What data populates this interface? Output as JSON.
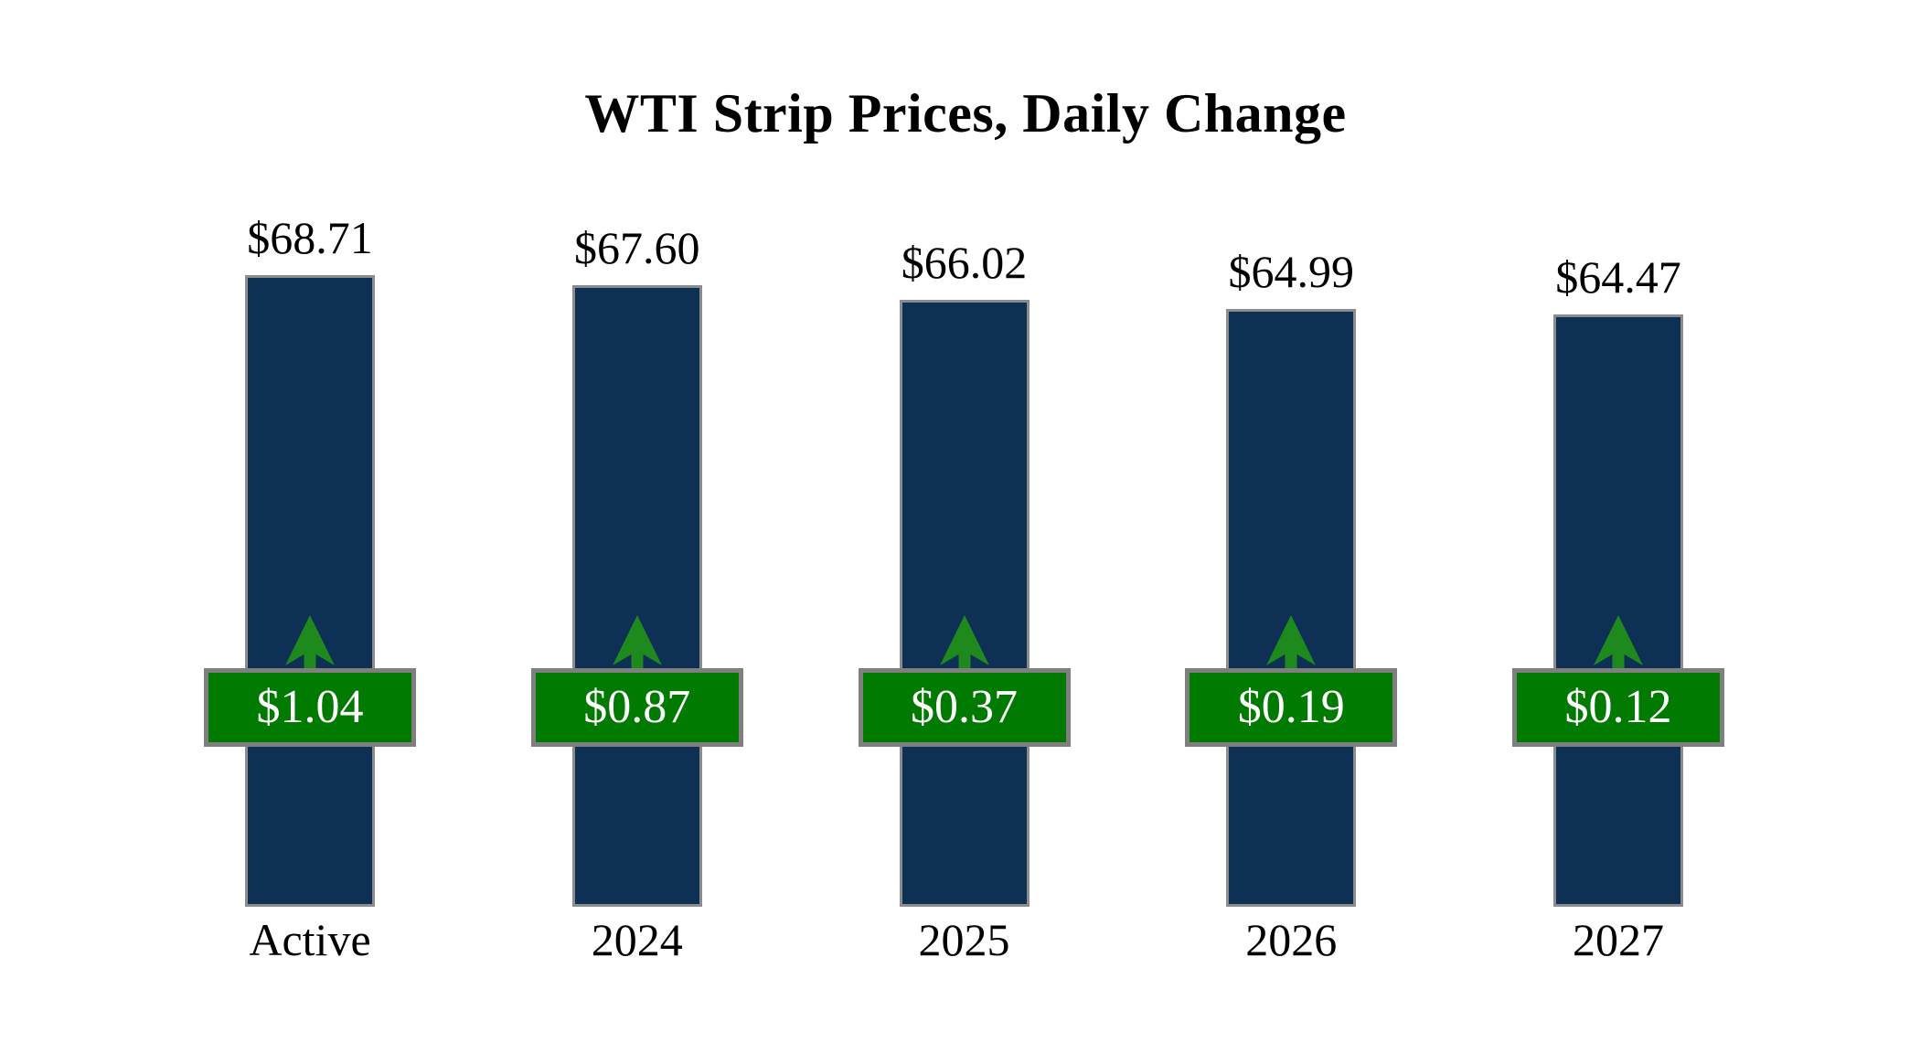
{
  "title": "WTI Strip Prices, Daily Change",
  "colors": {
    "bar": "#0D3054",
    "bar_border": "#8C8C8C",
    "badge": "#007A00",
    "badge_border": "#7F7F7F",
    "arrow": "#1E8A1E",
    "label_text": "#000000",
    "badge_text": "#FFFFFF",
    "background": "#FFFFFF"
  },
  "chart_data": {
    "type": "bar",
    "title": "WTI Strip Prices, Daily Change",
    "categories": [
      "Active",
      "2024",
      "2025",
      "2026",
      "2027"
    ],
    "series": [
      {
        "name": "Strip Price",
        "values": [
          68.71,
          67.6,
          66.02,
          64.99,
          64.47
        ]
      },
      {
        "name": "Daily Change",
        "values": [
          1.04,
          0.87,
          0.37,
          0.19,
          0.12
        ]
      }
    ],
    "ylim": [
      0,
      68.71
    ],
    "grid": false,
    "legend": "none",
    "columns": [
      {
        "category": "Active",
        "price": 68.71,
        "price_label": "$68.71",
        "change": 1.04,
        "change_label": "$1.04",
        "change_direction": "up"
      },
      {
        "category": "2024",
        "price": 67.6,
        "price_label": "$67.60",
        "change": 0.87,
        "change_label": "$0.87",
        "change_direction": "up"
      },
      {
        "category": "2025",
        "price": 66.02,
        "price_label": "$66.02",
        "change": 0.37,
        "change_label": "$0.37",
        "change_direction": "up"
      },
      {
        "category": "2026",
        "price": 64.99,
        "price_label": "$64.99",
        "change": 0.19,
        "change_label": "$0.19",
        "change_direction": "up"
      },
      {
        "category": "2027",
        "price": 64.47,
        "price_label": "$64.47",
        "change": 0.12,
        "change_label": "$0.12",
        "change_direction": "up"
      }
    ]
  }
}
